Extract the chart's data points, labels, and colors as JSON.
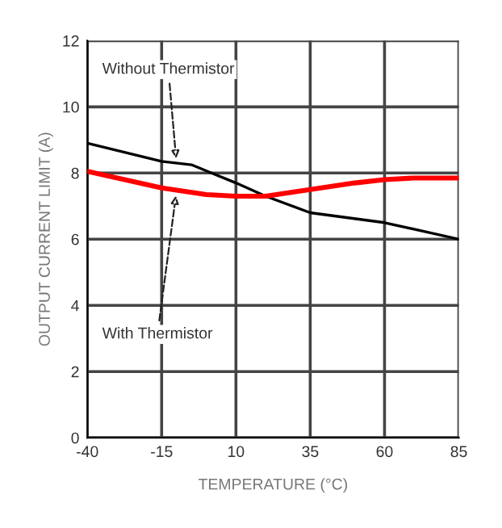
{
  "chart_data": {
    "type": "line",
    "xlabel": "TEMPERATURE (°C)",
    "ylabel": "OUTPUT CURRENT LIMIT (A)",
    "x": [
      -40,
      -15,
      -5,
      10,
      20,
      35,
      60,
      85
    ],
    "series": [
      {
        "color": "#000000",
        "values": [
          8.9,
          8.35,
          8.25,
          7.7,
          7.3,
          6.8,
          6.5,
          6.0
        ]
      },
      {
        "color": "#ff0000",
        "x": [
          -40,
          -15,
          0,
          10,
          20,
          35,
          50,
          60,
          70,
          85
        ],
        "values": [
          8.05,
          7.55,
          7.35,
          7.3,
          7.3,
          7.5,
          7.7,
          7.8,
          7.85,
          7.85
        ]
      }
    ],
    "xlim": [
      -40,
      85
    ],
    "ylim": [
      0,
      12
    ],
    "xticks": [
      -40,
      -15,
      10,
      35,
      60,
      85
    ],
    "yticks": [
      0,
      2,
      4,
      6,
      8,
      10,
      12
    ],
    "grid": true,
    "marker": "none",
    "annotations": [
      {
        "text": "Without Thermistor",
        "x": -10,
        "y": 8.3
      },
      {
        "text": "With Thermistor",
        "x": -10,
        "y": 7.45
      }
    ]
  }
}
